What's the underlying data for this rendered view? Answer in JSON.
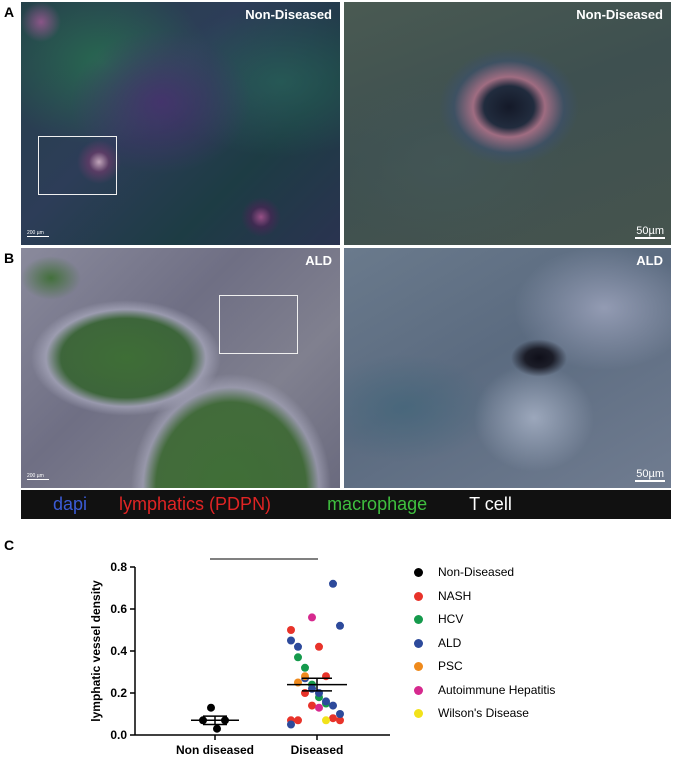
{
  "panels": {
    "a": {
      "letter": "A",
      "left_label": "Non-Diseased",
      "right_label": "Non-Diseased",
      "left_scale": "200 µm",
      "right_scale": "50µm"
    },
    "b": {
      "letter": "B",
      "left_label": "",
      "left_scale": "200 µm",
      "right_label": "ALD",
      "top_left_label": "ALD",
      "right_scale": "50µm"
    },
    "stain_legend": {
      "dapi": "dapi",
      "lymphatics": "lymphatics (PDPN)",
      "macrophage": "macrophage",
      "tcell": "T cell",
      "colors": {
        "dapi": "#3b5bd6",
        "lymphatics": "#e02424",
        "macrophage": "#3fbf3f",
        "tcell": "#ffffff"
      }
    },
    "c": {
      "letter": "C"
    }
  },
  "chart_data": {
    "type": "scatter",
    "ylabel": "lymphatic vessel density",
    "ylim": [
      0,
      0.8
    ],
    "yticks": [
      "0.0",
      "0.2",
      "0.4",
      "0.6",
      "0.8"
    ],
    "categories": [
      "Non diseased",
      "Diseased"
    ],
    "significance": "**",
    "series": [
      {
        "name": "Non-Diseased",
        "color": "#000000",
        "points": [
          [
            0,
            0.13
          ],
          [
            0,
            0.07
          ],
          [
            0,
            0.03
          ],
          [
            0,
            0.07
          ]
        ]
      },
      {
        "name": "NASH",
        "color": "#e8332a",
        "points": [
          [
            1,
            0.07
          ],
          [
            1,
            0.07
          ],
          [
            1,
            0.2
          ],
          [
            1,
            0.14
          ],
          [
            1,
            0.42
          ],
          [
            1,
            0.28
          ],
          [
            1,
            0.08
          ],
          [
            1,
            0.07
          ],
          [
            1,
            0.5
          ]
        ]
      },
      {
        "name": "HCV",
        "color": "#159a4c",
        "points": [
          [
            1,
            0.37
          ],
          [
            1,
            0.32
          ],
          [
            1,
            0.24
          ],
          [
            1,
            0.18
          ],
          [
            1,
            0.15
          ]
        ]
      },
      {
        "name": "ALD",
        "color": "#2d4a9b",
        "points": [
          [
            1,
            0.72
          ],
          [
            1,
            0.52
          ],
          [
            1,
            0.45
          ],
          [
            1,
            0.42
          ],
          [
            1,
            0.27
          ],
          [
            1,
            0.22
          ],
          [
            1,
            0.2
          ],
          [
            1,
            0.16
          ],
          [
            1,
            0.14
          ],
          [
            1,
            0.1
          ],
          [
            1,
            0.05
          ]
        ]
      },
      {
        "name": "PSC",
        "color": "#ef8a1c",
        "points": [
          [
            1,
            0.25
          ],
          [
            1,
            0.28
          ]
        ]
      },
      {
        "name": "Autoimmune Hepatitis",
        "color": "#d6298e",
        "points": [
          [
            1,
            0.56
          ],
          [
            1,
            0.13
          ]
        ]
      },
      {
        "name": "Wilson's Disease",
        "color": "#f2e21a",
        "points": [
          [
            1,
            0.07
          ]
        ]
      }
    ],
    "summary": [
      {
        "category": "Non diseased",
        "mean": 0.07,
        "sem": 0.02
      },
      {
        "category": "Diseased",
        "mean": 0.24,
        "sem": 0.03
      }
    ]
  }
}
